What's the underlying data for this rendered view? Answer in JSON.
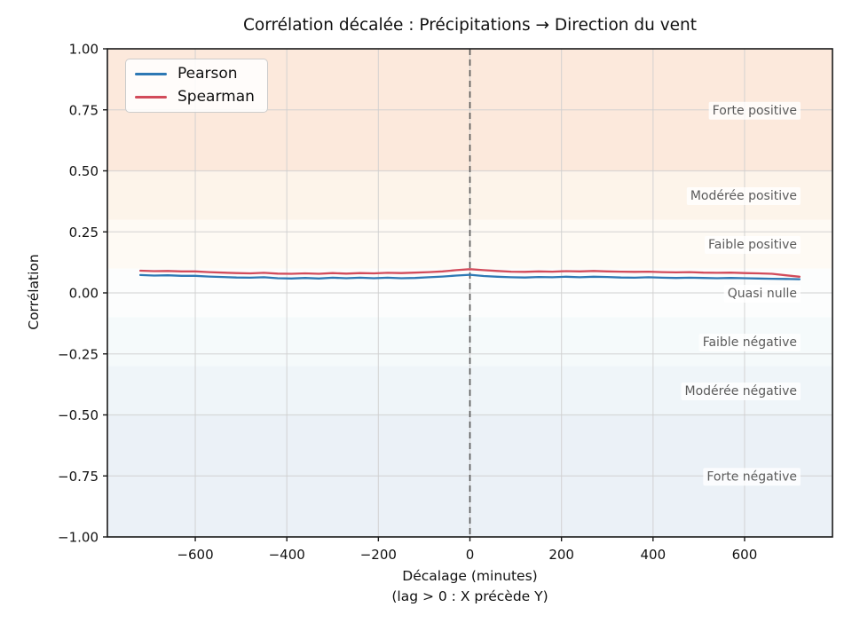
{
  "title": "Corrélation décalée : Précipitations → Direction du vent",
  "xlabel": "Décalage (minutes)",
  "xlabel_sub": "(lag > 0 : X précède Y)",
  "ylabel": "Corrélation",
  "colors": {
    "pearson_line": "#2d78b4",
    "spearman_line": "#d24b5a",
    "zero_lag_line": "#555555",
    "grid": "#cfcfcf",
    "spine": "#1a1a1a",
    "band_label_text": "#5b5b5b",
    "band_label_bg": "rgba(255,255,255,0.8)"
  },
  "chart_data": {
    "type": "line",
    "title": "Corrélation décalée : Précipitations → Direction du vent",
    "xlabel": "Décalage (minutes)\n(lag > 0 : X précède Y)",
    "ylabel": "Corrélation",
    "xlim": [
      -792,
      792
    ],
    "ylim": [
      -1.0,
      1.0
    ],
    "grid": true,
    "legend_position": "upper left",
    "vline_x": 0,
    "x_tick_values": [
      -600,
      -400,
      -200,
      0,
      200,
      400,
      600
    ],
    "x_tick_labels": [
      "−600",
      "−400",
      "−200",
      "0",
      "200",
      "400",
      "600"
    ],
    "y_tick_values": [
      1.0,
      0.75,
      0.5,
      0.25,
      0.0,
      -0.25,
      -0.5,
      -0.75,
      -1.0
    ],
    "y_tick_labels": [
      "1.00",
      "0.75",
      "0.50",
      "0.25",
      "0.00",
      "−0.25",
      "−0.50",
      "−0.75",
      "−1.00"
    ],
    "x": [
      -720,
      -690,
      -660,
      -630,
      -600,
      -570,
      -540,
      -510,
      -480,
      -450,
      -420,
      -390,
      -360,
      -330,
      -300,
      -270,
      -240,
      -210,
      -180,
      -150,
      -120,
      -90,
      -60,
      -30,
      0,
      30,
      60,
      90,
      120,
      150,
      180,
      210,
      240,
      270,
      300,
      330,
      360,
      390,
      420,
      450,
      480,
      510,
      540,
      570,
      600,
      630,
      660,
      690,
      720
    ],
    "series": [
      {
        "name": "Pearson",
        "color": "#2d78b4",
        "values": [
          0.073,
          0.071,
          0.072,
          0.07,
          0.07,
          0.067,
          0.065,
          0.063,
          0.062,
          0.064,
          0.06,
          0.059,
          0.061,
          0.059,
          0.062,
          0.06,
          0.062,
          0.06,
          0.062,
          0.06,
          0.061,
          0.064,
          0.067,
          0.071,
          0.074,
          0.069,
          0.066,
          0.064,
          0.063,
          0.065,
          0.064,
          0.066,
          0.064,
          0.066,
          0.065,
          0.063,
          0.062,
          0.064,
          0.062,
          0.061,
          0.062,
          0.061,
          0.06,
          0.061,
          0.06,
          0.059,
          0.058,
          0.057,
          0.056
        ]
      },
      {
        "name": "Spearman",
        "color": "#d24b5a",
        "values": [
          0.091,
          0.089,
          0.09,
          0.088,
          0.088,
          0.085,
          0.083,
          0.081,
          0.08,
          0.082,
          0.079,
          0.078,
          0.08,
          0.078,
          0.081,
          0.079,
          0.081,
          0.08,
          0.082,
          0.081,
          0.083,
          0.085,
          0.088,
          0.093,
          0.097,
          0.093,
          0.09,
          0.087,
          0.086,
          0.088,
          0.087,
          0.089,
          0.088,
          0.09,
          0.088,
          0.087,
          0.086,
          0.087,
          0.085,
          0.084,
          0.085,
          0.083,
          0.082,
          0.083,
          0.081,
          0.08,
          0.078,
          0.072,
          0.066
        ]
      }
    ],
    "bands": [
      {
        "label": "Forte positive",
        "from": 0.5,
        "to": 1.0,
        "color": "#fce9dc",
        "label_y": 0.75
      },
      {
        "label": "Modérée positive",
        "from": 0.3,
        "to": 0.5,
        "color": "#fdf4ea",
        "label_y": 0.4
      },
      {
        "label": "Faible positive",
        "from": 0.1,
        "to": 0.3,
        "color": "#fefaf4",
        "label_y": 0.2
      },
      {
        "label": "Quasi nulle",
        "from": -0.1,
        "to": 0.1,
        "color": "#fcfdfd",
        "label_y": 0.0
      },
      {
        "label": "Faible négative",
        "from": -0.3,
        "to": -0.1,
        "color": "#f5fafb",
        "label_y": -0.2
      },
      {
        "label": "Modérée négative",
        "from": -0.5,
        "to": -0.3,
        "color": "#eff5f9",
        "label_y": -0.4
      },
      {
        "label": "Forte négative",
        "from": -1.0,
        "to": -0.5,
        "color": "#ebf1f7",
        "label_y": -0.75
      }
    ]
  }
}
